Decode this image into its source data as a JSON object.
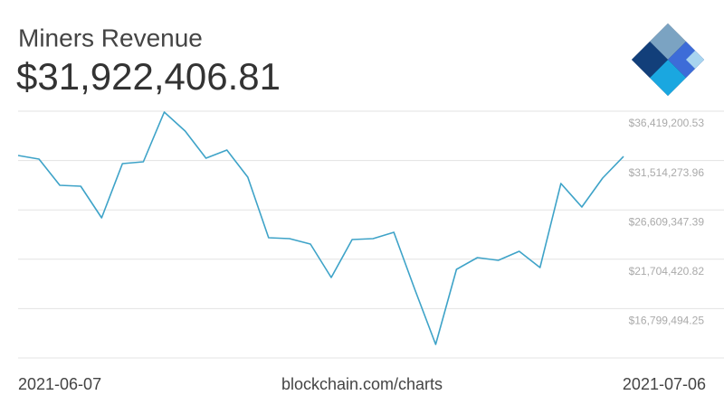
{
  "chart_data": {
    "type": "line",
    "title": "Miners Revenue",
    "subtitle": "$31,922,406.81",
    "source": "blockchain.com/charts",
    "categories": [
      "2021-06-07",
      null,
      null,
      null,
      null,
      null,
      null,
      null,
      null,
      null,
      null,
      null,
      null,
      null,
      null,
      null,
      null,
      null,
      null,
      null,
      null,
      null,
      null,
      null,
      null,
      null,
      null,
      null,
      null,
      "2021-07-06"
    ],
    "series": [
      {
        "name": "Miners Revenue",
        "color": "#3ea3c8",
        "values": [
          32017000,
          31658000,
          29053000,
          28963000,
          25819000,
          31209000,
          31389000,
          36329000,
          34443000,
          31748000,
          32556000,
          29861000,
          23842000,
          23753000,
          23214000,
          19890000,
          23663000,
          23753000,
          24381000,
          18722000,
          13242000,
          20698000,
          21866000,
          21597000,
          22495000,
          20878000,
          29233000,
          26897000,
          29772000,
          31922406.81
        ]
      }
    ],
    "ylim": [
      11894567.68,
      36419200.53
    ],
    "yticks": [
      {
        "value": 16799494.25,
        "label": "$16,799,494.25"
      },
      {
        "value": 21704420.82,
        "label": "$21,704,420.82"
      },
      {
        "value": 26609347.39,
        "label": "$26,609,347.39"
      },
      {
        "value": 31514273.96,
        "label": "$31,514,273.96"
      },
      {
        "value": 36419200.53,
        "label": "$36,419,200.53"
      }
    ],
    "grid": true
  }
}
